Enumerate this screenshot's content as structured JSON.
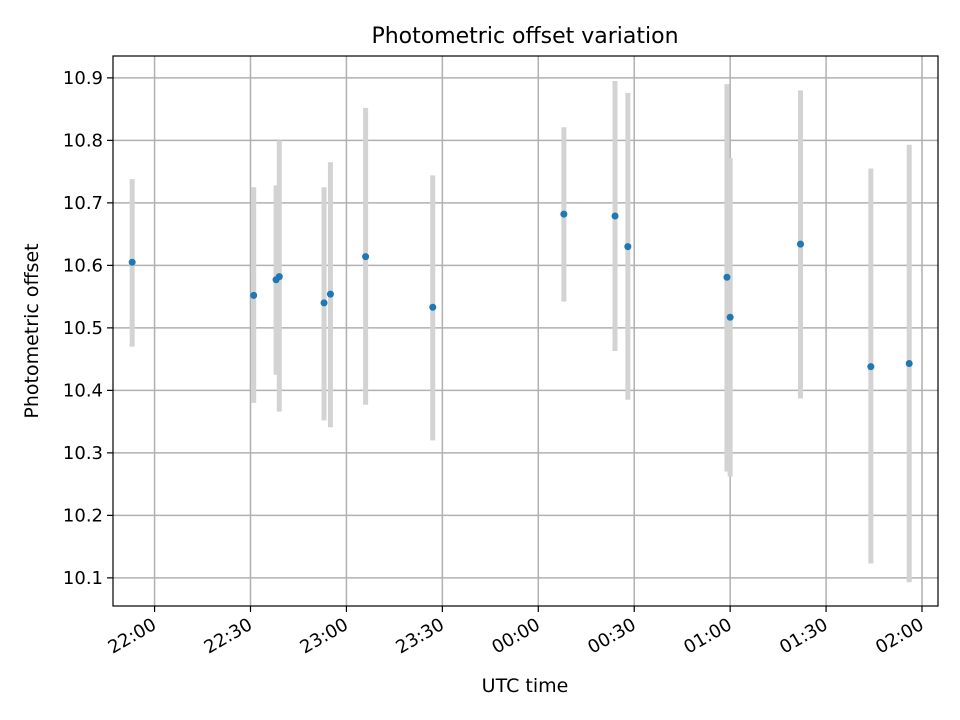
{
  "chart_data": {
    "type": "scatter",
    "title": "Photometric offset variation",
    "xlabel": "UTC time",
    "ylabel": "Photometric offset",
    "x_ticks": [
      "22:00",
      "22:30",
      "23:00",
      "23:30",
      "00:00",
      "00:30",
      "01:00",
      "01:30",
      "02:00"
    ],
    "y_ticks": [
      "10.1",
      "10.2",
      "10.3",
      "10.4",
      "10.5",
      "10.6",
      "10.7",
      "10.8",
      "10.9"
    ],
    "xlim": [
      "21:47",
      "02:05"
    ],
    "ylim": [
      10.055,
      10.935
    ],
    "grid": true,
    "colors": {
      "point": "#1f77b4",
      "errorbar": "#d3d3d3",
      "grid": "#b0b0b0"
    },
    "points": [
      {
        "time": "21:53",
        "y": 10.605,
        "y_low": 10.47,
        "y_high": 10.738
      },
      {
        "time": "22:31",
        "y": 10.552,
        "y_low": 10.38,
        "y_high": 10.725
      },
      {
        "time": "22:38",
        "y": 10.577,
        "y_low": 10.425,
        "y_high": 10.728
      },
      {
        "time": "22:39",
        "y": 10.582,
        "y_low": 10.366,
        "y_high": 10.8
      },
      {
        "time": "22:53",
        "y": 10.54,
        "y_low": 10.352,
        "y_high": 10.725
      },
      {
        "time": "22:55",
        "y": 10.554,
        "y_low": 10.341,
        "y_high": 10.765
      },
      {
        "time": "23:06",
        "y": 10.614,
        "y_low": 10.377,
        "y_high": 10.852
      },
      {
        "time": "23:27",
        "y": 10.533,
        "y_low": 10.32,
        "y_high": 10.744
      },
      {
        "time": "00:08",
        "y": 10.682,
        "y_low": 10.542,
        "y_high": 10.821
      },
      {
        "time": "00:24",
        "y": 10.679,
        "y_low": 10.463,
        "y_high": 10.895
      },
      {
        "time": "00:28",
        "y": 10.63,
        "y_low": 10.385,
        "y_high": 10.876
      },
      {
        "time": "00:59",
        "y": 10.581,
        "y_low": 10.27,
        "y_high": 10.89
      },
      {
        "time": "01:00",
        "y": 10.517,
        "y_low": 10.262,
        "y_high": 10.772
      },
      {
        "time": "01:22",
        "y": 10.634,
        "y_low": 10.387,
        "y_high": 10.88
      },
      {
        "time": "01:44",
        "y": 10.438,
        "y_low": 10.123,
        "y_high": 10.755
      },
      {
        "time": "01:56",
        "y": 10.443,
        "y_low": 10.093,
        "y_high": 10.793
      }
    ]
  }
}
